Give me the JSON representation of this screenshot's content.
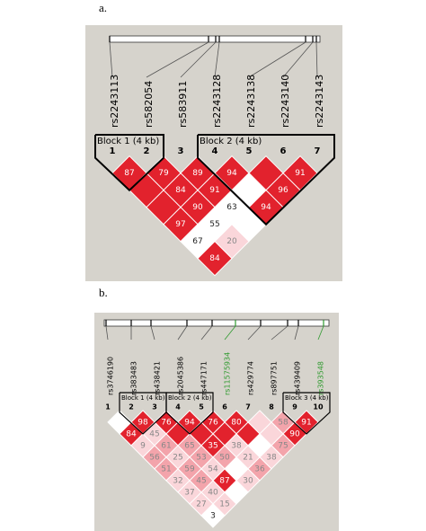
{
  "panels": [
    {
      "label": "a.",
      "snps": [
        {
          "name": "rs2243113",
          "color": "#000000"
        },
        {
          "name": "rs582054",
          "color": "#000000"
        },
        {
          "name": "rs583911",
          "color": "#000000"
        },
        {
          "name": "rs2243128",
          "color": "#000000"
        },
        {
          "name": "rs2243138",
          "color": "#000000"
        },
        {
          "name": "rs2243140",
          "color": "#000000"
        },
        {
          "name": "rs2243143",
          "color": "#000000"
        }
      ],
      "numbers": [
        "1",
        "2",
        "3",
        "4",
        "5",
        "6",
        "7"
      ],
      "blocks": [
        "Block 1 (4 kb)",
        "Block 2 (4 kb)"
      ],
      "cells": [
        "87",
        "79",
        "89",
        "94",
        "91",
        "84",
        "91",
        "96",
        "90",
        "63",
        "94",
        "97",
        "55",
        "67",
        "20",
        "84"
      ]
    },
    {
      "label": "b.",
      "snps": [
        {
          "name": "rs3746190",
          "color": "#000000"
        },
        {
          "name": "rs383483",
          "color": "#000000"
        },
        {
          "name": "rs438421",
          "color": "#000000"
        },
        {
          "name": "rs2045386",
          "color": "#000000"
        },
        {
          "name": "rs447171",
          "color": "#000000"
        },
        {
          "name": "rs11575934",
          "color": "#2e9a2e"
        },
        {
          "name": "rs429774",
          "color": "#000000"
        },
        {
          "name": "rs897751",
          "color": "#000000"
        },
        {
          "name": "rs439409",
          "color": "#000000"
        },
        {
          "name": "rs393548",
          "color": "#2e9a2e"
        }
      ],
      "numbers": [
        "1",
        "2",
        "3",
        "4",
        "5",
        "6",
        "7",
        "8",
        "9",
        "10"
      ],
      "blocks": [
        "Block 1 (4 kb)",
        "Block 2 (4 kb)",
        "Block 3 (4 kb)"
      ],
      "cells": [
        "98",
        "76",
        "94",
        "76",
        "80",
        "58",
        "91",
        "84",
        "45",
        "90",
        "9",
        "61",
        "65",
        "35",
        "38",
        "75",
        "56",
        "25",
        "53",
        "50",
        "21",
        "38",
        "51",
        "59",
        "54",
        "36",
        "32",
        "45",
        "87",
        "30",
        "37",
        "40",
        "27",
        "15",
        "3"
      ]
    }
  ]
}
